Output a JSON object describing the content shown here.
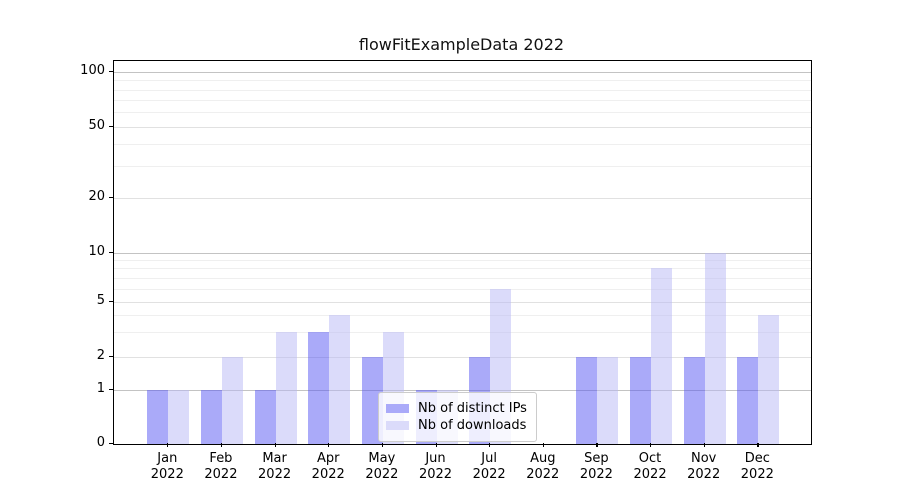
{
  "chart_data": {
    "type": "bar",
    "title": "flowFitExampleData 2022",
    "categories": [
      "Jan",
      "Feb",
      "Mar",
      "Apr",
      "May",
      "Jun",
      "Jul",
      "Aug",
      "Sep",
      "Oct",
      "Nov",
      "Dec"
    ],
    "category_year_line": "2022",
    "series": [
      {
        "name": "Nb of distinct IPs",
        "color": "#aaaaf9",
        "fill": "rgba(85,85,243,0.5)",
        "values": [
          1,
          1,
          1,
          3,
          2,
          1,
          2,
          0,
          2,
          2,
          2,
          2
        ]
      },
      {
        "name": "Nb of downloads",
        "color": "#dbdbfa",
        "fill": "rgba(183,183,245,0.5)",
        "values": [
          1,
          2,
          3,
          4,
          3,
          1,
          6,
          0,
          2,
          8,
          10,
          4
        ]
      }
    ],
    "xlabel": "",
    "ylabel": "",
    "y_axis": {
      "scale": "asinh (log above 1, linear 0-1)",
      "tick_labels": [
        "0",
        "1",
        "2",
        "5",
        "10",
        "20",
        "50",
        "100"
      ],
      "ticks": [
        0,
        1,
        2,
        5,
        10,
        20,
        50,
        100
      ],
      "major_gridlines": [
        1,
        10,
        100
      ],
      "semi_gridlines": [
        2,
        5,
        20,
        50
      ],
      "minor_gridlines": [
        3,
        4,
        6,
        7,
        8,
        9,
        30,
        40,
        60,
        70,
        80,
        90
      ],
      "ylim": [
        0,
        115
      ]
    },
    "grid": true,
    "legend": {
      "position": "lower center",
      "entries": [
        "Nb of distinct IPs",
        "Nb of downloads"
      ]
    }
  }
}
